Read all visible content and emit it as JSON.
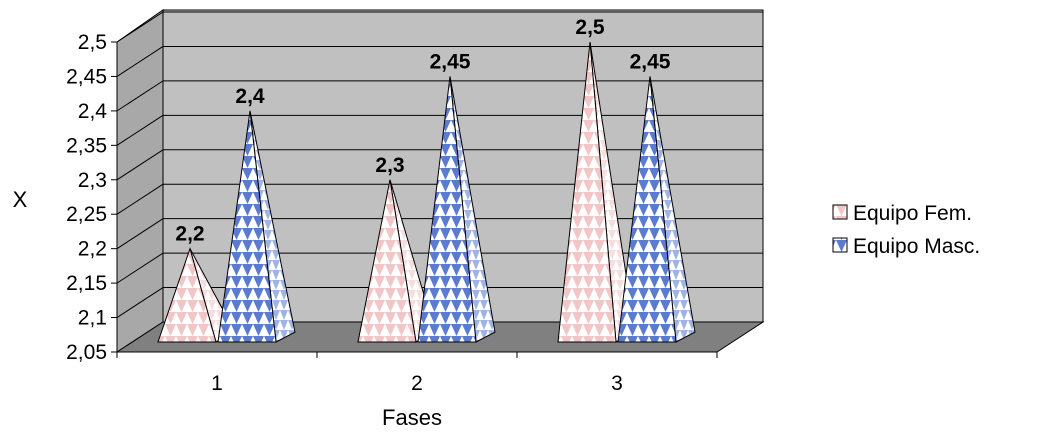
{
  "chart_data": {
    "type": "bar",
    "style": "3d-pyramid",
    "xlabel": "Fases",
    "ylabel": "X",
    "ylim": [
      2.05,
      2.5
    ],
    "ytick_labels": [
      "2,05",
      "2,1",
      "2,15",
      "2,2",
      "2,25",
      "2,3",
      "2,35",
      "2,4",
      "2,45",
      "2,5"
    ],
    "categories": [
      "1",
      "2",
      "3"
    ],
    "grid": true,
    "legend_position": "right",
    "series": [
      {
        "name": "Equipo Fem.",
        "values": [
          2.2,
          2.3,
          2.5
        ],
        "labels": [
          "2,2",
          "2,3",
          "2,5"
        ],
        "color": "#f2c6c6"
      },
      {
        "name": "Equipo Masc.",
        "values": [
          2.4,
          2.45,
          2.45
        ],
        "labels": [
          "2,4",
          "2,45",
          "2,45"
        ],
        "color": "#5b7bd0"
      }
    ]
  }
}
